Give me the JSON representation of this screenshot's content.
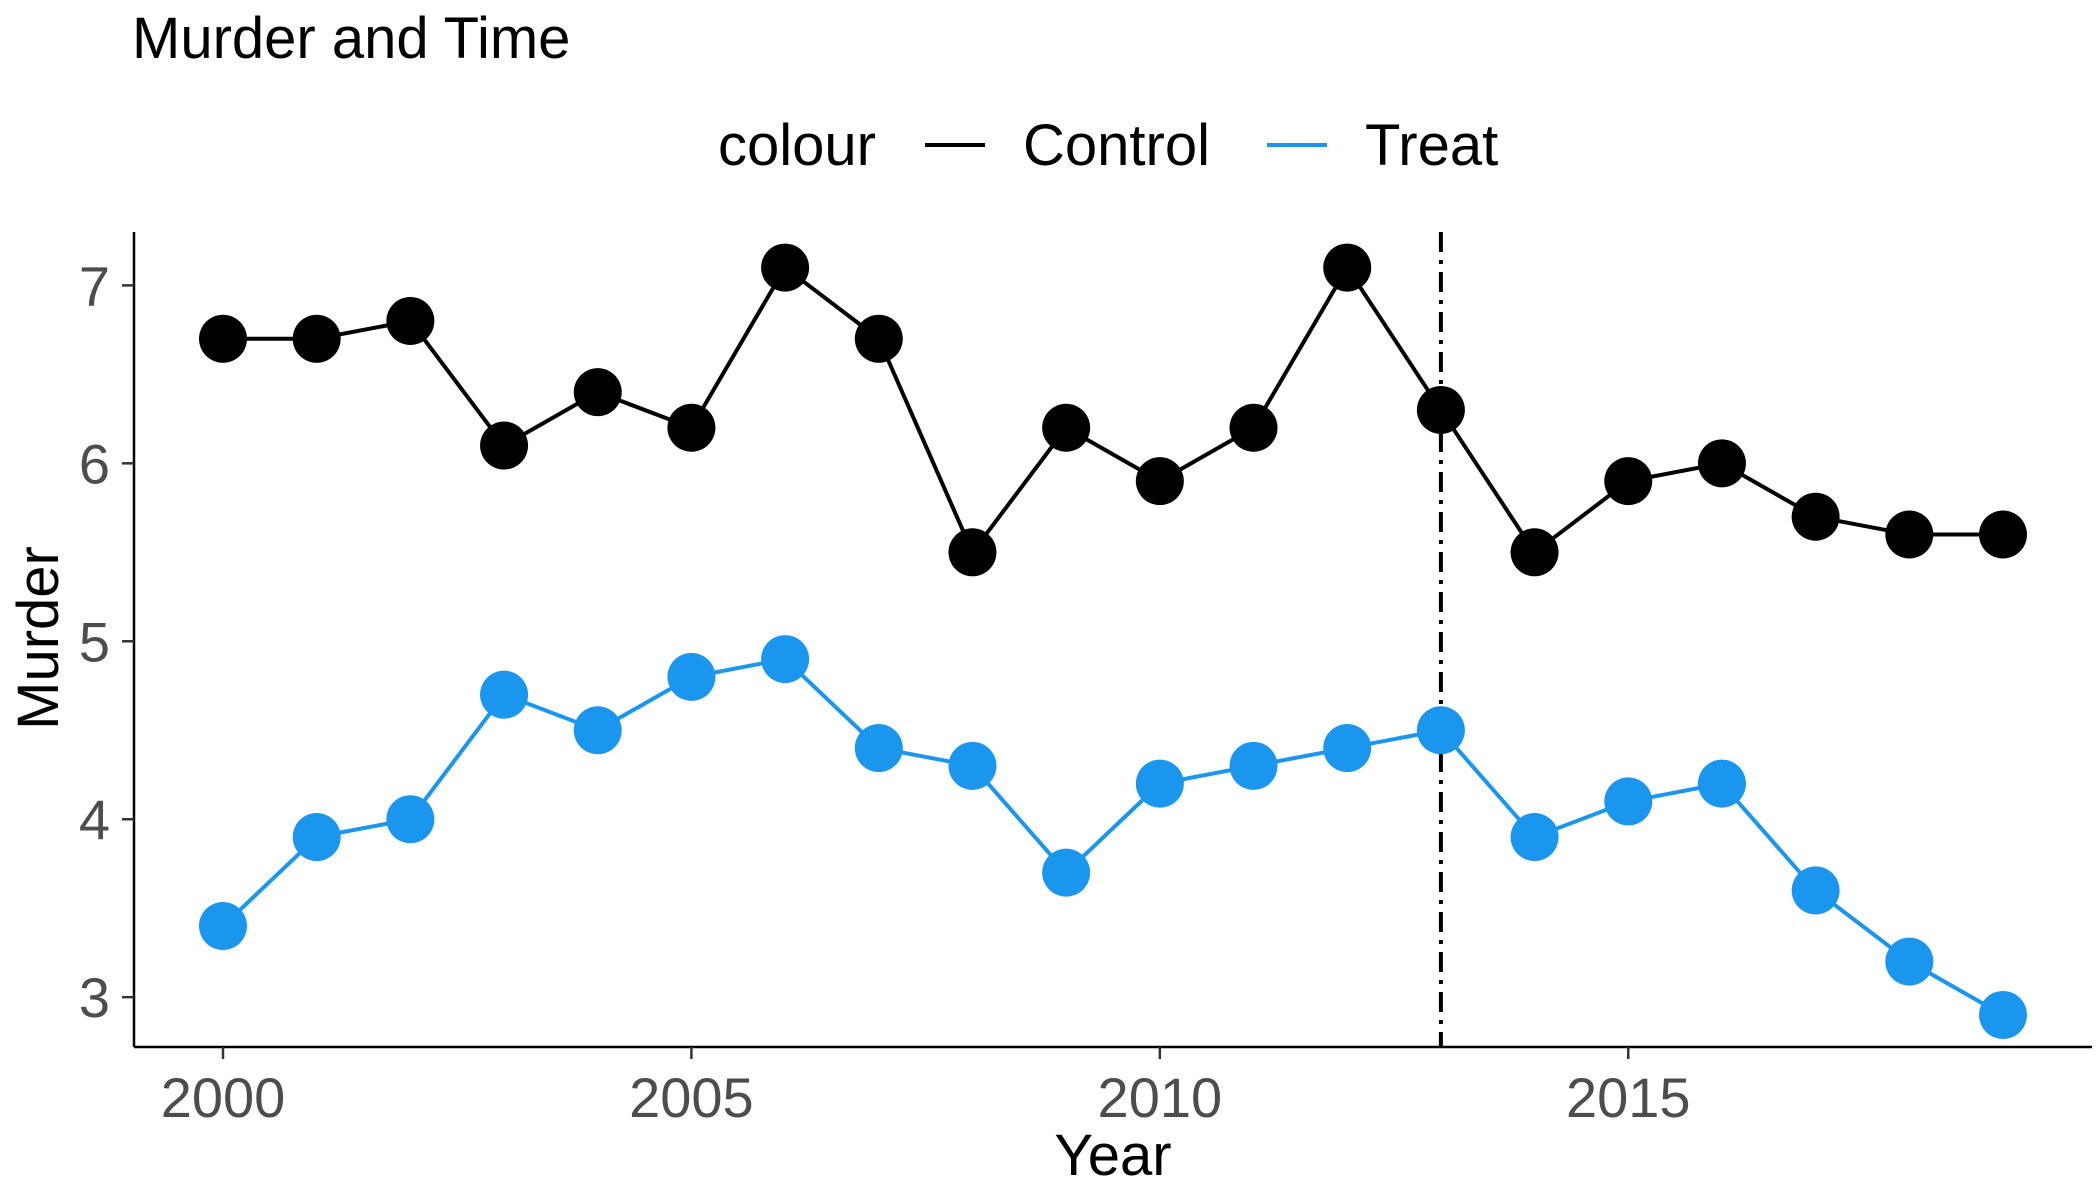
{
  "chart_data": {
    "type": "line",
    "title": "Murder and Time",
    "xlabel": "Year",
    "ylabel": "Murder",
    "legend_title": "colour",
    "legend_position": "top",
    "grid": false,
    "xlim": [
      1999.05,
      2019.95
    ],
    "ylim": [
      2.72,
      7.3
    ],
    "x_ticks": [
      2000,
      2005,
      2010,
      2015
    ],
    "y_ticks": [
      3,
      4,
      5,
      6,
      7
    ],
    "x": [
      2000,
      2001,
      2002,
      2003,
      2004,
      2005,
      2006,
      2007,
      2008,
      2009,
      2010,
      2011,
      2012,
      2013,
      2014,
      2015,
      2016,
      2017,
      2018,
      2019
    ],
    "series": [
      {
        "name": "Control",
        "color": "#000000",
        "values": [
          6.7,
          6.7,
          6.8,
          6.1,
          6.4,
          6.2,
          7.1,
          6.7,
          5.5,
          6.2,
          5.9,
          6.2,
          7.1,
          6.3,
          5.5,
          5.9,
          6.0,
          5.7,
          5.6,
          5.6
        ]
      },
      {
        "name": "Treat",
        "color": "#1A96EE",
        "values": [
          3.4,
          3.9,
          4.0,
          4.7,
          4.5,
          4.8,
          4.9,
          4.4,
          4.3,
          3.7,
          4.2,
          4.3,
          4.4,
          4.5,
          3.9,
          4.1,
          4.2,
          3.6,
          3.2,
          2.9
        ]
      }
    ],
    "vline": {
      "x": 2013,
      "style": "dashdot",
      "color": "#000000"
    }
  }
}
